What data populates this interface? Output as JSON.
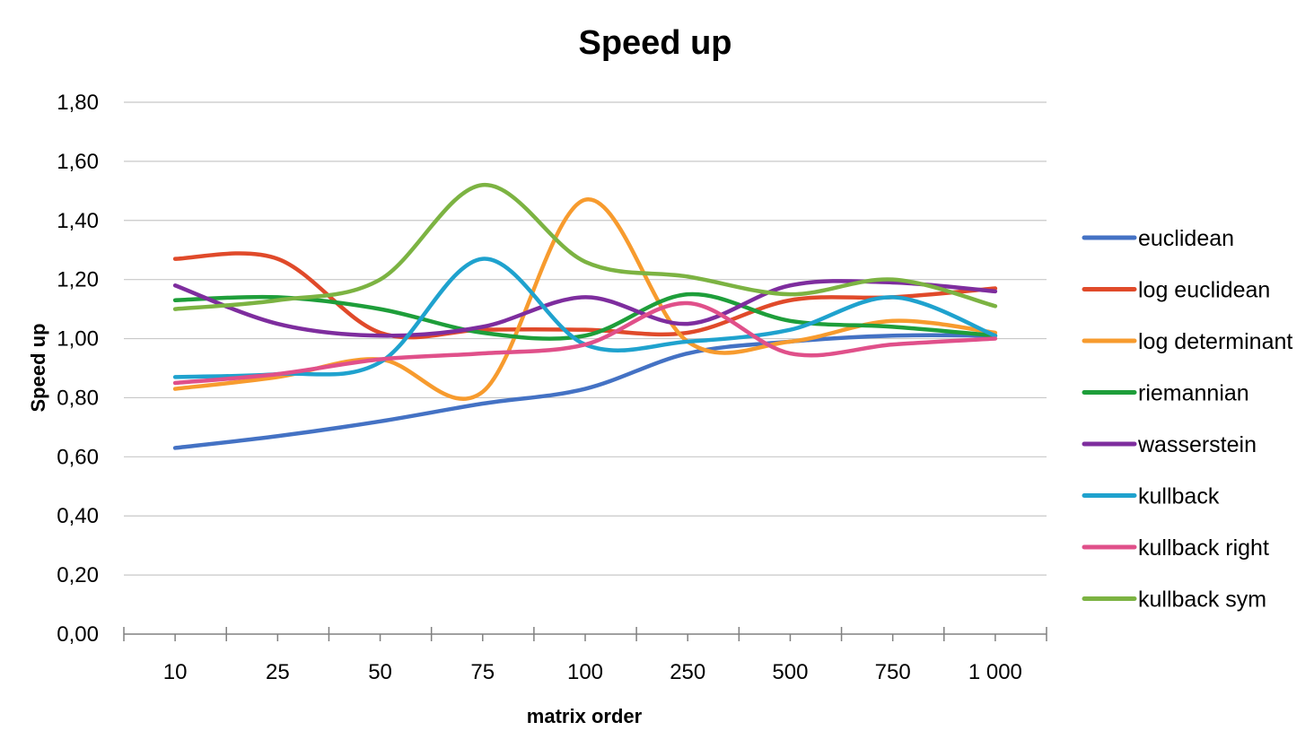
{
  "chart_data": {
    "type": "line",
    "title": "Speed up",
    "xlabel": "matrix order",
    "ylabel": "Speed up",
    "categories": [
      "10",
      "25",
      "50",
      "75",
      "100",
      "250",
      "500",
      "750",
      "1 000"
    ],
    "ylim": [
      0,
      1.8
    ],
    "yticks": [
      "0,00",
      "0,20",
      "0,40",
      "0,60",
      "0,80",
      "1,00",
      "1,20",
      "1,40",
      "1,60",
      "1,80"
    ],
    "grid": true,
    "smooth": true,
    "legend_position": "right",
    "series": [
      {
        "name": "euclidean",
        "color": "#4472C4",
        "values": [
          0.63,
          0.67,
          0.72,
          0.78,
          0.83,
          0.95,
          0.99,
          1.01,
          1.01
        ]
      },
      {
        "name": "log euclidean",
        "color": "#E04A2A",
        "values": [
          1.27,
          1.27,
          1.02,
          1.03,
          1.03,
          1.02,
          1.13,
          1.14,
          1.17
        ]
      },
      {
        "name": "log determinant",
        "color": "#F79B2E",
        "values": [
          0.83,
          0.87,
          0.93,
          0.82,
          1.47,
          0.99,
          0.99,
          1.06,
          1.02
        ]
      },
      {
        "name": "riemannian",
        "color": "#1E9E3A",
        "values": [
          1.13,
          1.14,
          1.1,
          1.02,
          1.01,
          1.15,
          1.06,
          1.04,
          1.01
        ]
      },
      {
        "name": "wasserstein",
        "color": "#7E2D9E",
        "values": [
          1.18,
          1.05,
          1.01,
          1.04,
          1.14,
          1.05,
          1.18,
          1.19,
          1.16
        ]
      },
      {
        "name": "kullback",
        "color": "#1FA2CE",
        "values": [
          0.87,
          0.88,
          0.92,
          1.27,
          0.98,
          0.99,
          1.03,
          1.14,
          1.01
        ]
      },
      {
        "name": "kullback right",
        "color": "#E0508A",
        "values": [
          0.85,
          0.88,
          0.93,
          0.95,
          0.98,
          1.12,
          0.95,
          0.98,
          1.0
        ]
      },
      {
        "name": "kullback sym",
        "color": "#7CB342",
        "values": [
          1.1,
          1.13,
          1.2,
          1.52,
          1.26,
          1.21,
          1.15,
          1.2,
          1.11
        ]
      }
    ]
  }
}
